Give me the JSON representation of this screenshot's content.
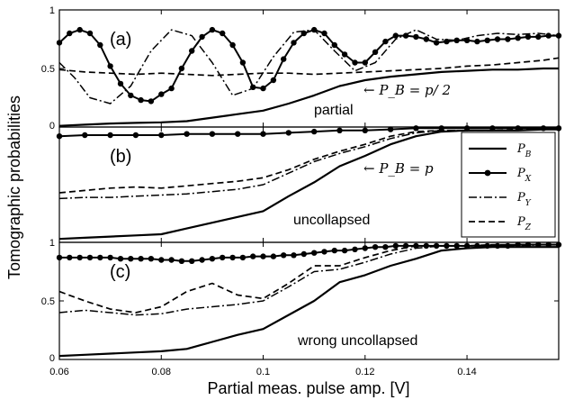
{
  "figure": {
    "ylabel": "Tomographic probabilities",
    "xlabel": "Partial meas. pulse amp. [V]",
    "xlim": [
      0.06,
      0.158
    ],
    "xticks": [
      "0.06",
      "0.08",
      "0.1",
      "0.12",
      "0.14"
    ]
  },
  "legend": {
    "entries": [
      {
        "key": "PB",
        "label": "P",
        "sub": "B",
        "marker": "none",
        "dash": "solid"
      },
      {
        "key": "PX",
        "label": "P",
        "sub": "X",
        "marker": "dot",
        "dash": "solid"
      },
      {
        "key": "PY",
        "label": "P",
        "sub": "Y",
        "marker": "none",
        "dash": "dashdot"
      },
      {
        "key": "PZ",
        "label": "P",
        "sub": "Z",
        "marker": "none",
        "dash": "dashed"
      }
    ]
  },
  "chart_data": [
    {
      "type": "line",
      "panel_label": "(a)",
      "inner_label": "partial",
      "annotation": "← P_B = p/ 2",
      "yticks": [
        "0",
        "0.5",
        "1"
      ],
      "ylim": [
        0,
        1
      ],
      "series": [
        {
          "key": "PB",
          "x": [
            0.06,
            0.065,
            0.07,
            0.075,
            0.08,
            0.085,
            0.09,
            0.095,
            0.1,
            0.105,
            0.11,
            0.115,
            0.12,
            0.125,
            0.13,
            0.135,
            0.14,
            0.145,
            0.15,
            0.155,
            0.158
          ],
          "values": [
            0.01,
            0.02,
            0.03,
            0.035,
            0.04,
            0.05,
            0.08,
            0.11,
            0.14,
            0.2,
            0.27,
            0.35,
            0.4,
            0.43,
            0.45,
            0.47,
            0.48,
            0.49,
            0.49,
            0.5,
            0.5
          ]
        },
        {
          "key": "PX",
          "x": [
            0.06,
            0.062,
            0.064,
            0.066,
            0.068,
            0.07,
            0.072,
            0.074,
            0.076,
            0.078,
            0.08,
            0.082,
            0.084,
            0.086,
            0.088,
            0.09,
            0.092,
            0.094,
            0.096,
            0.098,
            0.1,
            0.102,
            0.104,
            0.106,
            0.108,
            0.11,
            0.112,
            0.114,
            0.116,
            0.118,
            0.12,
            0.122,
            0.124,
            0.126,
            0.128,
            0.13,
            0.132,
            0.134,
            0.136,
            0.138,
            0.14,
            0.142,
            0.144,
            0.146,
            0.148,
            0.15,
            0.152,
            0.154,
            0.156,
            0.158
          ],
          "values": [
            0.72,
            0.8,
            0.83,
            0.8,
            0.7,
            0.52,
            0.37,
            0.27,
            0.23,
            0.22,
            0.28,
            0.33,
            0.5,
            0.65,
            0.77,
            0.83,
            0.8,
            0.7,
            0.55,
            0.34,
            0.33,
            0.4,
            0.58,
            0.72,
            0.8,
            0.83,
            0.8,
            0.7,
            0.62,
            0.55,
            0.55,
            0.64,
            0.73,
            0.78,
            0.78,
            0.77,
            0.75,
            0.72,
            0.73,
            0.74,
            0.74,
            0.73,
            0.74,
            0.75,
            0.75,
            0.76,
            0.77,
            0.77,
            0.78,
            0.78
          ]
        },
        {
          "key": "PY",
          "x": [
            0.06,
            0.063,
            0.066,
            0.07,
            0.074,
            0.078,
            0.082,
            0.086,
            0.09,
            0.094,
            0.098,
            0.102,
            0.106,
            0.11,
            0.114,
            0.118,
            0.122,
            0.126,
            0.13,
            0.134,
            0.138,
            0.142,
            0.146,
            0.15,
            0.154,
            0.158
          ],
          "values": [
            0.55,
            0.42,
            0.25,
            0.2,
            0.35,
            0.65,
            0.83,
            0.78,
            0.55,
            0.27,
            0.33,
            0.6,
            0.81,
            0.83,
            0.65,
            0.48,
            0.55,
            0.75,
            0.83,
            0.75,
            0.74,
            0.78,
            0.8,
            0.79,
            0.8,
            0.78
          ]
        },
        {
          "key": "PZ",
          "x": [
            0.06,
            0.065,
            0.07,
            0.075,
            0.08,
            0.085,
            0.09,
            0.095,
            0.1,
            0.105,
            0.11,
            0.115,
            0.12,
            0.125,
            0.13,
            0.135,
            0.14,
            0.145,
            0.15,
            0.155,
            0.158
          ],
          "values": [
            0.49,
            0.47,
            0.46,
            0.45,
            0.46,
            0.45,
            0.44,
            0.45,
            0.46,
            0.46,
            0.45,
            0.46,
            0.47,
            0.48,
            0.49,
            0.5,
            0.52,
            0.53,
            0.55,
            0.57,
            0.59
          ]
        }
      ]
    },
    {
      "type": "line",
      "panel_label": "(b)",
      "inner_label": "uncollapsed",
      "annotation": "← P_B = p",
      "yticks": [],
      "ylim": [
        0,
        1
      ],
      "series": [
        {
          "key": "PB",
          "x": [
            0.06,
            0.065,
            0.07,
            0.075,
            0.08,
            0.085,
            0.09,
            0.095,
            0.1,
            0.105,
            0.11,
            0.115,
            0.12,
            0.125,
            0.13,
            0.135,
            0.14,
            0.145,
            0.15,
            0.155,
            0.158
          ],
          "values": [
            0.03,
            0.04,
            0.05,
            0.06,
            0.07,
            0.12,
            0.17,
            0.22,
            0.27,
            0.4,
            0.52,
            0.66,
            0.75,
            0.85,
            0.92,
            0.96,
            0.97,
            0.97,
            0.97,
            0.98,
            0.98
          ]
        },
        {
          "key": "PX",
          "x": [
            0.06,
            0.065,
            0.07,
            0.075,
            0.08,
            0.085,
            0.09,
            0.095,
            0.1,
            0.105,
            0.11,
            0.115,
            0.12,
            0.125,
            0.13,
            0.135,
            0.14,
            0.145,
            0.15,
            0.155,
            0.158
          ],
          "values": [
            0.92,
            0.93,
            0.93,
            0.93,
            0.93,
            0.94,
            0.94,
            0.94,
            0.94,
            0.95,
            0.96,
            0.97,
            0.97,
            0.98,
            0.99,
            0.99,
            0.99,
            0.99,
            0.99,
            0.99,
            0.99
          ]
        },
        {
          "key": "PY",
          "x": [
            0.06,
            0.065,
            0.07,
            0.075,
            0.08,
            0.085,
            0.09,
            0.095,
            0.1,
            0.105,
            0.11,
            0.115,
            0.12,
            0.125,
            0.13,
            0.135,
            0.14,
            0.145,
            0.15,
            0.155,
            0.158
          ],
          "values": [
            0.38,
            0.39,
            0.39,
            0.4,
            0.41,
            0.42,
            0.44,
            0.46,
            0.5,
            0.6,
            0.7,
            0.77,
            0.83,
            0.9,
            0.95,
            0.97,
            0.97,
            0.97,
            0.97,
            0.98,
            0.98
          ]
        },
        {
          "key": "PZ",
          "x": [
            0.06,
            0.065,
            0.07,
            0.075,
            0.08,
            0.085,
            0.09,
            0.095,
            0.1,
            0.105,
            0.11,
            0.115,
            0.12,
            0.125,
            0.13,
            0.135,
            0.14,
            0.145,
            0.15,
            0.155,
            0.158
          ],
          "values": [
            0.43,
            0.45,
            0.47,
            0.48,
            0.47,
            0.49,
            0.51,
            0.53,
            0.56,
            0.63,
            0.72,
            0.79,
            0.85,
            0.92,
            0.96,
            0.97,
            0.97,
            0.97,
            0.98,
            0.98,
            0.98
          ]
        }
      ]
    },
    {
      "type": "line",
      "panel_label": "(c)",
      "inner_label": "wrong uncollapsed",
      "annotation": "",
      "yticks": [
        "0",
        "0.5",
        "1"
      ],
      "ylim": [
        0,
        1
      ],
      "series": [
        {
          "key": "PB",
          "x": [
            0.06,
            0.065,
            0.07,
            0.075,
            0.08,
            0.085,
            0.09,
            0.095,
            0.1,
            0.105,
            0.11,
            0.115,
            0.12,
            0.125,
            0.13,
            0.135,
            0.14,
            0.145,
            0.15,
            0.155,
            0.158
          ],
          "values": [
            0.03,
            0.04,
            0.05,
            0.06,
            0.07,
            0.09,
            0.15,
            0.21,
            0.26,
            0.38,
            0.5,
            0.66,
            0.72,
            0.8,
            0.86,
            0.93,
            0.95,
            0.96,
            0.96,
            0.96,
            0.96
          ]
        },
        {
          "key": "PX",
          "x": [
            0.06,
            0.062,
            0.064,
            0.066,
            0.068,
            0.07,
            0.072,
            0.074,
            0.076,
            0.078,
            0.08,
            0.082,
            0.084,
            0.086,
            0.088,
            0.09,
            0.092,
            0.094,
            0.096,
            0.098,
            0.1,
            0.102,
            0.104,
            0.106,
            0.108,
            0.11,
            0.112,
            0.114,
            0.116,
            0.118,
            0.12,
            0.122,
            0.124,
            0.126,
            0.128,
            0.13,
            0.132,
            0.134,
            0.136,
            0.138,
            0.14,
            0.142,
            0.144,
            0.146,
            0.148,
            0.15,
            0.152,
            0.154,
            0.156,
            0.158
          ],
          "values": [
            0.87,
            0.87,
            0.87,
            0.87,
            0.87,
            0.87,
            0.86,
            0.86,
            0.86,
            0.86,
            0.85,
            0.85,
            0.84,
            0.84,
            0.85,
            0.86,
            0.87,
            0.87,
            0.87,
            0.88,
            0.88,
            0.88,
            0.89,
            0.89,
            0.9,
            0.91,
            0.92,
            0.93,
            0.93,
            0.94,
            0.95,
            0.96,
            0.96,
            0.97,
            0.97,
            0.97,
            0.97,
            0.97,
            0.97,
            0.97,
            0.97,
            0.97,
            0.97,
            0.97,
            0.97,
            0.98,
            0.98,
            0.98,
            0.98,
            0.98
          ]
        },
        {
          "key": "PY",
          "x": [
            0.06,
            0.065,
            0.07,
            0.075,
            0.08,
            0.085,
            0.09,
            0.095,
            0.1,
            0.105,
            0.11,
            0.115,
            0.12,
            0.125,
            0.13,
            0.135,
            0.14,
            0.145,
            0.15,
            0.155,
            0.158
          ],
          "values": [
            0.4,
            0.42,
            0.4,
            0.38,
            0.39,
            0.43,
            0.45,
            0.47,
            0.5,
            0.62,
            0.75,
            0.77,
            0.83,
            0.9,
            0.95,
            0.97,
            0.97,
            0.97,
            0.97,
            0.98,
            0.98
          ]
        },
        {
          "key": "PZ",
          "x": [
            0.06,
            0.065,
            0.07,
            0.075,
            0.08,
            0.085,
            0.09,
            0.095,
            0.1,
            0.105,
            0.11,
            0.115,
            0.12,
            0.125,
            0.13,
            0.135,
            0.14,
            0.145,
            0.15,
            0.155,
            0.158
          ],
          "values": [
            0.58,
            0.5,
            0.43,
            0.4,
            0.45,
            0.58,
            0.65,
            0.55,
            0.52,
            0.65,
            0.8,
            0.8,
            0.87,
            0.93,
            0.97,
            0.97,
            0.97,
            0.98,
            0.98,
            0.98,
            0.98
          ]
        }
      ]
    }
  ]
}
